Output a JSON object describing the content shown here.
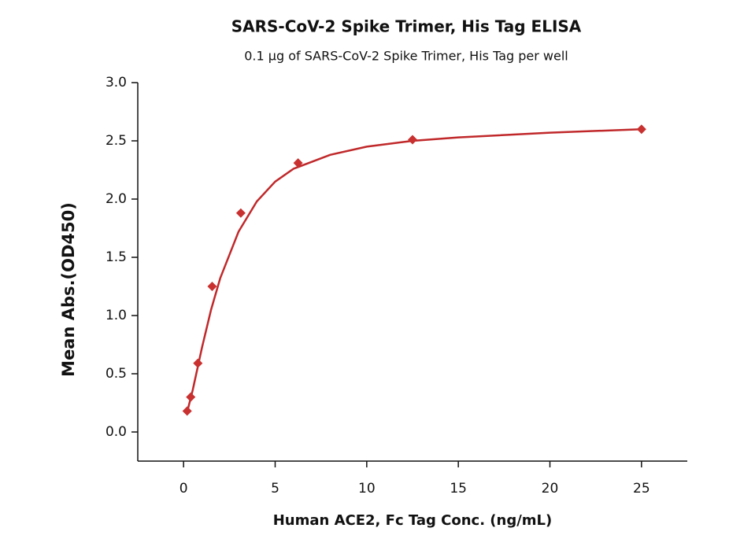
{
  "chart_data": {
    "type": "scatter",
    "title": "SARS-CoV-2 Spike Trimer, His Tag  ELISA",
    "subtitle": "0.1 μg of SARS-CoV-2 Spike Trimer, His Tag  per well",
    "x_label": "Human ACE2, Fc Tag Conc. (ng/mL)",
    "y_label": "Mean Abs.(OD450)",
    "x": [
      0.195,
      0.39,
      0.78,
      1.56,
      3.125,
      6.25,
      12.5,
      25
    ],
    "series": [
      {
        "color": "#c8312f",
        "marker": "diamond",
        "values": [
          0.18,
          0.3,
          0.59,
          1.25,
          1.88,
          2.31,
          2.51,
          2.6
        ]
      }
    ],
    "fit": {
      "color": "#c0282a",
      "x": [
        0.195,
        0.5,
        1,
        1.5,
        2,
        3,
        4,
        5,
        6,
        8,
        10,
        12.5,
        15,
        20,
        25
      ],
      "values": [
        0.17,
        0.36,
        0.72,
        1.05,
        1.32,
        1.72,
        1.98,
        2.15,
        2.26,
        2.38,
        2.45,
        2.5,
        2.53,
        2.57,
        2.6
      ]
    },
    "xlim": [
      -2.5,
      27.5
    ],
    "xticks": [
      0,
      5,
      10,
      15,
      20,
      25
    ],
    "ylim": [
      -0.25,
      3.0
    ],
    "yticks": [
      {
        "value": 0,
        "label": "0.0"
      },
      {
        "value": 0.5,
        "label": "0.5"
      },
      {
        "value": 1,
        "label": "1.0"
      },
      {
        "value": 1.5,
        "label": "1.5"
      },
      {
        "value": 2,
        "label": "2.0"
      },
      {
        "value": 2.5,
        "label": "2.5"
      },
      {
        "value": 3,
        "label": "3.0"
      }
    ],
    "grid": false
  }
}
